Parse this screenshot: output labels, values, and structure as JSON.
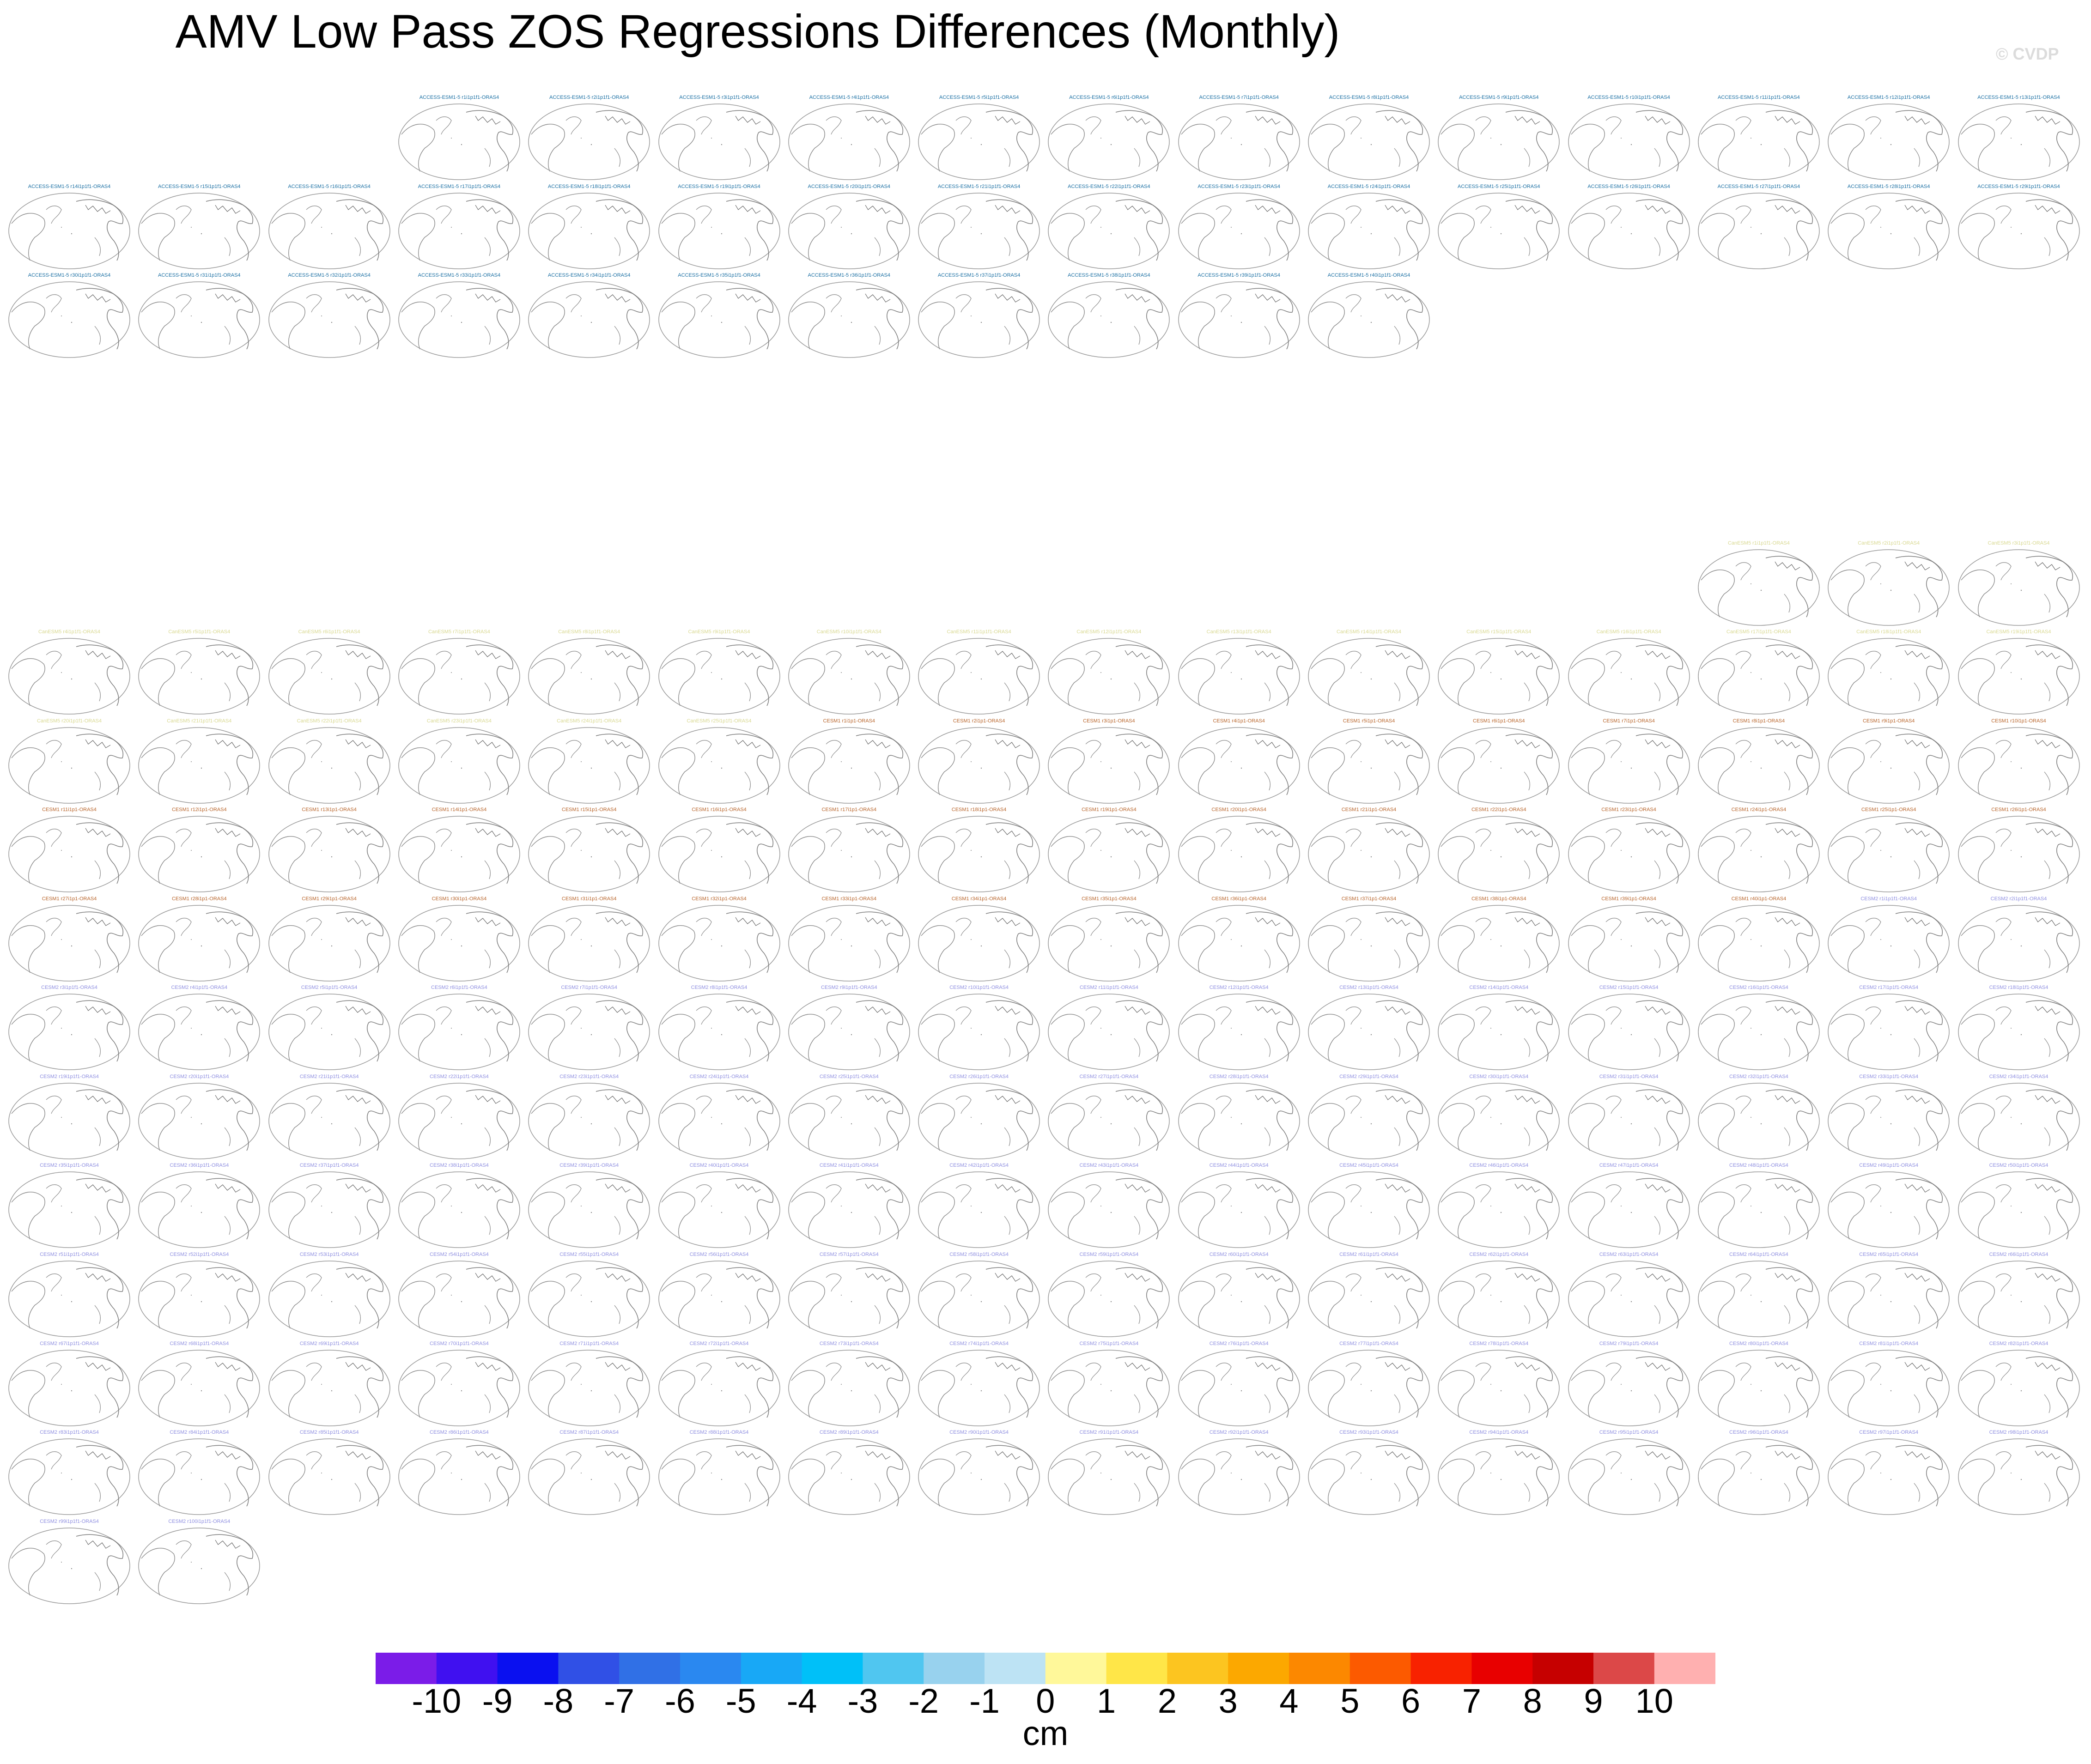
{
  "title": "AMV Low Pass ZOS Regressions Differences (Monthly)",
  "watermark": "© CVDP",
  "chart_data": {
    "type": "heatmap",
    "title": "AMV Low Pass ZOS Regressions Differences (Monthly)",
    "panel_title_suffix": "-ORAS4",
    "groups": [
      {
        "model": "ACCESS-ESM1-5",
        "title_prefix": "ACCESS-ESM1-5 r",
        "title_suffix": "i1p1f1-ORAS4",
        "members": 40,
        "start_index": 1,
        "color": "#1a6fa3"
      },
      {
        "model": "CanESM5",
        "title_prefix": "CanESM5 r",
        "title_suffix": "i1p1f1-ORAS4",
        "members": 25,
        "start_index": 1,
        "color": "#d8d890"
      },
      {
        "model": "CESM1",
        "title_prefix": "CESM1 r",
        "title_suffix": "i1p1-ORAS4",
        "members": 40,
        "start_index": 1,
        "color": "#b8642a"
      },
      {
        "model": "CESM2",
        "title_prefix": "CESM2 r",
        "title_suffix": "i1p1f1-ORAS4",
        "members": 100,
        "start_index": 1,
        "color": "#8e8ee0"
      }
    ],
    "panel_values": "near-zero (maps show only coastlines)",
    "colorbar": {
      "ticks": [
        "-10",
        "-9",
        "-8",
        "-7",
        "-6",
        "-5",
        "-4",
        "-3",
        "-2",
        "-1",
        "0",
        "1",
        "2",
        "3",
        "4",
        "5",
        "6",
        "7",
        "8",
        "9",
        "10"
      ],
      "colors": [
        "#7b1ce8",
        "#4010f0",
        "#0a10f0",
        "#3050e6",
        "#3070e6",
        "#2a88f0",
        "#18a8f6",
        "#00c0f8",
        "#50c6f0",
        "#98d2ee",
        "#bde3f4",
        "#fff89a",
        "#ffe648",
        "#fcc520",
        "#fca800",
        "#fc8800",
        "#fc5a00",
        "#f82200",
        "#e80000",
        "#c60000",
        "#dc4848",
        "#ffb0b0"
      ],
      "unit": "cm"
    }
  }
}
